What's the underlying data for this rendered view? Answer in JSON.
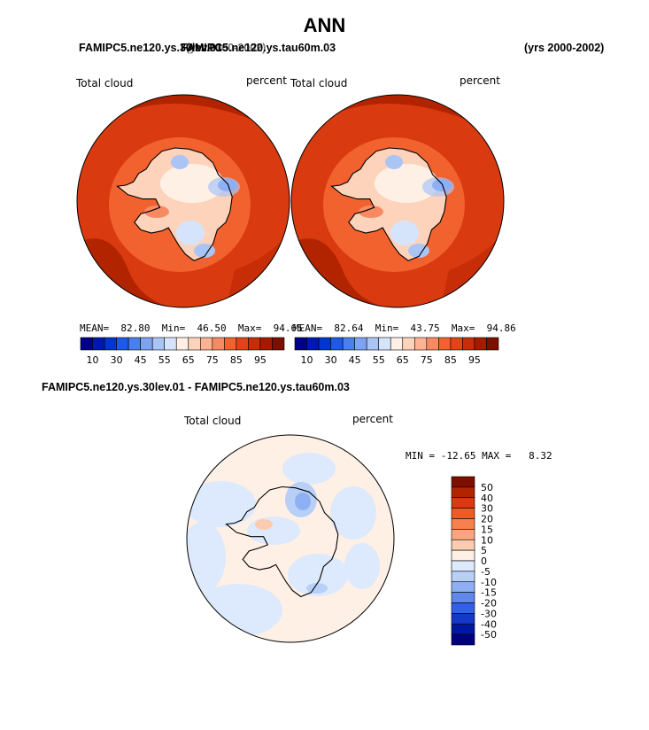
{
  "title": "ANN",
  "case_left": "FAMIPC5.ne120.ys.30lev.01",
  "case_right": "FAMIPC5.ne120.ys.tau60m.03",
  "years_left": "(yrs 2000-2002)",
  "years_right": "(yrs 2000-2002)",
  "diff_title": "FAMIPC5.ne120.ys.30lev.01 - FAMIPC5.ne120.ys.tau60m.03",
  "colors": {
    "ocean_high": "#b22400",
    "land": "#ffffff",
    "coast": "#000000"
  },
  "chart_data": [
    {
      "type": "heatmap",
      "projection": "south polar stereographic",
      "variable_label": "Total cloud",
      "units": "percent",
      "stats": {
        "mean_label": "MEAN=",
        "mean": "82.80",
        "min_label": "Min=",
        "min": "46.50",
        "max_label": "Max=",
        "max": "94.65"
      },
      "colorbar": {
        "orientation": "horizontal",
        "levels": [
          10,
          15,
          20,
          25,
          30,
          40,
          45,
          50,
          55,
          60,
          65,
          70,
          75,
          80,
          85,
          90,
          95
        ],
        "tick_labels": [
          "10",
          "30",
          "45",
          "55",
          "65",
          "75",
          "85",
          "95"
        ],
        "colors": [
          "#000088",
          "#0018b0",
          "#0036d0",
          "#1d5ae8",
          "#4a7ff0",
          "#7ea3f4",
          "#aac4f6",
          "#d6e4fb",
          "#fff0e6",
          "#fdd3bc",
          "#fcb394",
          "#f88a63",
          "#f1622f",
          "#e24417",
          "#c72e08",
          "#a61b00",
          "#7d0f00"
        ]
      }
    },
    {
      "type": "heatmap",
      "projection": "south polar stereographic",
      "variable_label": "Total cloud",
      "units": "percent",
      "stats": {
        "mean_label": "MEAN=",
        "mean": "82.64",
        "min_label": "Min=",
        "min": "43.75",
        "max_label": "Max=",
        "max": "94.86"
      },
      "colorbar": {
        "orientation": "horizontal",
        "levels": [
          10,
          15,
          20,
          25,
          30,
          40,
          45,
          50,
          55,
          60,
          65,
          70,
          75,
          80,
          85,
          90,
          95
        ],
        "tick_labels": [
          "10",
          "30",
          "45",
          "55",
          "65",
          "75",
          "85",
          "95"
        ],
        "colors": [
          "#000088",
          "#0018b0",
          "#0036d0",
          "#1d5ae8",
          "#4a7ff0",
          "#7ea3f4",
          "#aac4f6",
          "#d6e4fb",
          "#fff0e6",
          "#fdd3bc",
          "#fcb394",
          "#f88a63",
          "#f1622f",
          "#e24417",
          "#c72e08",
          "#a61b00",
          "#7d0f00"
        ]
      }
    },
    {
      "type": "heatmap",
      "projection": "south polar stereographic",
      "variable_label": "Total cloud",
      "units": "percent",
      "stats": {
        "min_label": "MIN =",
        "min": "-12.65",
        "max_label": "MAX =",
        "max": "8.32"
      },
      "colorbar": {
        "orientation": "vertical",
        "tick_labels": [
          "50",
          "40",
          "30",
          "20",
          "15",
          "10",
          "5",
          "0",
          "-5",
          "-10",
          "-15",
          "-20",
          "-30",
          "-40",
          "-50"
        ],
        "colors": [
          "#7d0f00",
          "#b22400",
          "#d93a10",
          "#f15a28",
          "#f8804f",
          "#fba57f",
          "#fdcbb0",
          "#fff0e6",
          "#dde9fc",
          "#b8cff7",
          "#8eb0f2",
          "#5f87ee",
          "#3460e4",
          "#1438c8",
          "#0018a0",
          "#000080"
        ]
      }
    }
  ]
}
